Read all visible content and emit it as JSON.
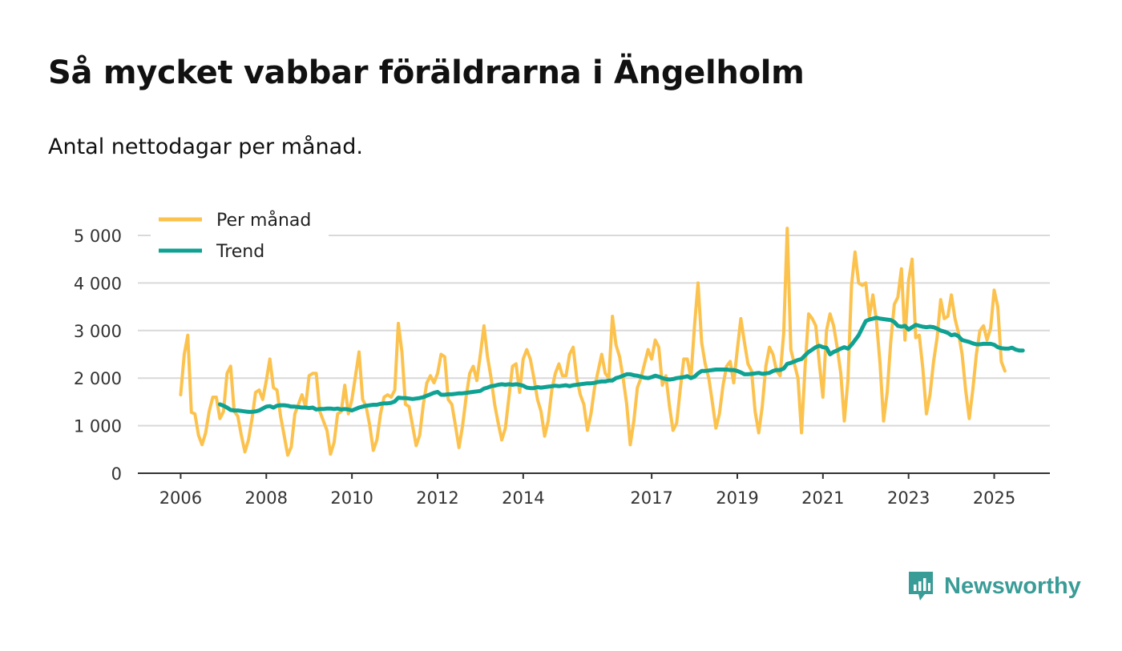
{
  "header": {
    "title": "Så mycket vabbar föräldrarna i Ängelholm",
    "subtitle": "Antal nettodagar per månad."
  },
  "brand": {
    "name": "Newsworthy",
    "color": "#3a9c97"
  },
  "colors": {
    "monthly": "#fcc24e",
    "trend": "#0fa293",
    "grid": "#d9d9d9",
    "axis": "#333333"
  },
  "chart_data": {
    "type": "line",
    "title": "Så mycket vabbar föräldrarna i Ängelholm",
    "subtitle": "Antal nettodagar per månad.",
    "xlabel": "",
    "ylabel": "",
    "xlim": [
      2005.0,
      2026.3
    ],
    "ylim": [
      0,
      5000
    ],
    "x_ticks": [
      2006,
      2008,
      2010,
      2012,
      2014,
      2017,
      2019,
      2021,
      2023,
      2025
    ],
    "x_tick_labels": [
      "2006",
      "2008",
      "2010",
      "2012",
      "2014",
      "2017",
      "2019",
      "2021",
      "2023",
      "2025"
    ],
    "y_ticks": [
      0,
      1000,
      2000,
      3000,
      4000,
      5000
    ],
    "y_tick_labels": [
      "0",
      "1 000",
      "2 000",
      "3 000",
      "4 000",
      "5 000"
    ],
    "grid": true,
    "legend_position": "top-left",
    "series": [
      {
        "name": "Per månad",
        "start_year": 2006,
        "start_month": 1,
        "values": [
          1650,
          2500,
          2900,
          1280,
          1250,
          800,
          600,
          850,
          1300,
          1600,
          1600,
          1150,
          1300,
          2100,
          2250,
          1300,
          1200,
          800,
          450,
          700,
          1150,
          1700,
          1750,
          1550,
          1950,
          2400,
          1800,
          1750,
          1200,
          800,
          380,
          550,
          1250,
          1450,
          1650,
          1400,
          2050,
          2100,
          2100,
          1300,
          1100,
          900,
          400,
          650,
          1250,
          1300,
          1850,
          1250,
          1550,
          2050,
          2550,
          1550,
          1400,
          1000,
          480,
          700,
          1250,
          1600,
          1650,
          1600,
          1750,
          3150,
          2550,
          1450,
          1400,
          1000,
          580,
          800,
          1450,
          1900,
          2050,
          1900,
          2100,
          2500,
          2450,
          1550,
          1450,
          1000,
          540,
          1000,
          1600,
          2100,
          2250,
          1950,
          2500,
          3100,
          2450,
          2000,
          1450,
          1050,
          700,
          950,
          1600,
          2250,
          2300,
          1700,
          2400,
          2600,
          2400,
          2000,
          1550,
          1300,
          780,
          1100,
          1750,
          2100,
          2300,
          2050,
          2050,
          2500,
          2650,
          2000,
          1650,
          1450,
          900,
          1250,
          1800,
          2150,
          2500,
          2100,
          2000,
          3300,
          2700,
          2450,
          2000,
          1450,
          600,
          1100,
          1800,
          2000,
          2300,
          2600,
          2400,
          2800,
          2650,
          1850,
          2050,
          1400,
          900,
          1050,
          1750,
          2400,
          2400,
          2000,
          3100,
          4000,
          2750,
          2300,
          2000,
          1500,
          950,
          1250,
          1850,
          2250,
          2350,
          1900,
          2600,
          3250,
          2750,
          2300,
          2150,
          1300,
          850,
          1400,
          2250,
          2650,
          2500,
          2150,
          2050,
          2950,
          5150,
          2600,
          2300,
          2000,
          850,
          2250,
          3350,
          3250,
          3100,
          2300,
          1600,
          3000,
          3350,
          3100,
          2650,
          2100,
          1100,
          1950,
          3950,
          4650,
          4000,
          3950,
          4000,
          3300,
          3750,
          3200,
          2300,
          1100,
          1700,
          2750,
          3550,
          3700,
          4300,
          2800,
          4050,
          4500,
          2850,
          2900,
          2200,
          1250,
          1650,
          2350,
          2850,
          3650,
          3250,
          3300,
          3750,
          3250,
          2950,
          2500,
          1750,
          1150,
          1750,
          2500,
          3000,
          3100,
          2800,
          3050,
          3850,
          3500,
          2350,
          2150
        ]
      },
      {
        "name": "Trend",
        "start_year": 2006,
        "start_month": 12,
        "values": [
          1450,
          1420,
          1380,
          1330,
          1320,
          1320,
          1310,
          1300,
          1290,
          1290,
          1300,
          1320,
          1360,
          1400,
          1410,
          1380,
          1420,
          1430,
          1430,
          1420,
          1400,
          1400,
          1390,
          1380,
          1380,
          1370,
          1380,
          1340,
          1350,
          1350,
          1360,
          1360,
          1350,
          1360,
          1340,
          1350,
          1340,
          1320,
          1350,
          1380,
          1400,
          1420,
          1430,
          1440,
          1440,
          1460,
          1470,
          1470,
          1480,
          1510,
          1590,
          1580,
          1580,
          1570,
          1560,
          1570,
          1580,
          1600,
          1630,
          1660,
          1690,
          1710,
          1650,
          1650,
          1660,
          1660,
          1670,
          1680,
          1680,
          1690,
          1700,
          1710,
          1720,
          1730,
          1780,
          1800,
          1830,
          1840,
          1860,
          1870,
          1860,
          1870,
          1860,
          1870,
          1860,
          1840,
          1800,
          1790,
          1790,
          1810,
          1800,
          1810,
          1820,
          1830,
          1840,
          1830,
          1840,
          1850,
          1830,
          1850,
          1860,
          1870,
          1880,
          1890,
          1890,
          1900,
          1920,
          1930,
          1930,
          1950,
          1950,
          2000,
          2020,
          2050,
          2080,
          2080,
          2060,
          2050,
          2030,
          2010,
          2000,
          2020,
          2050,
          2030,
          2000,
          1980,
          1970,
          1980,
          2000,
          2010,
          2020,
          2040,
          2000,
          2030,
          2100,
          2150,
          2150,
          2160,
          2170,
          2180,
          2180,
          2180,
          2180,
          2170,
          2170,
          2150,
          2120,
          2080,
          2080,
          2090,
          2100,
          2110,
          2090,
          2100,
          2110,
          2150,
          2170,
          2170,
          2200,
          2300,
          2320,
          2350,
          2380,
          2400,
          2480,
          2550,
          2600,
          2650,
          2680,
          2650,
          2640,
          2500,
          2550,
          2580,
          2620,
          2650,
          2620,
          2700,
          2800,
          2900,
          3050,
          3200,
          3230,
          3250,
          3270,
          3250,
          3240,
          3230,
          3220,
          3180,
          3100,
          3080,
          3100,
          3020,
          3070,
          3120,
          3100,
          3080,
          3070,
          3080,
          3070,
          3040,
          3000,
          2980,
          2950,
          2900,
          2920,
          2880,
          2800,
          2780,
          2760,
          2730,
          2710,
          2710,
          2720,
          2720,
          2720,
          2700,
          2650,
          2630,
          2620,
          2620,
          2640,
          2600,
          2580,
          2580
        ]
      }
    ]
  }
}
